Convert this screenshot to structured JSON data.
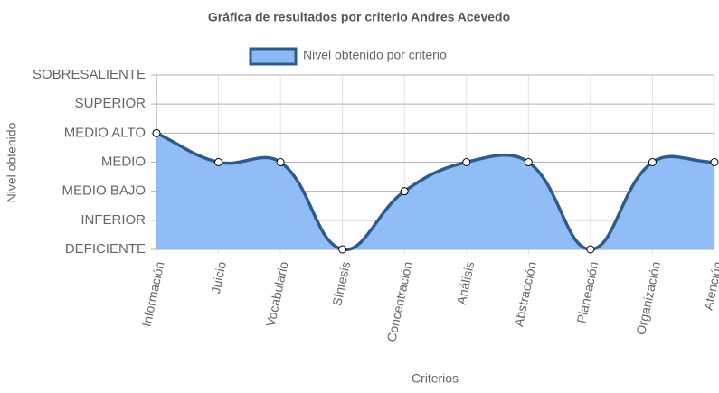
{
  "chart_data": {
    "type": "area",
    "title": "Gráfica de resultados por criterio Andres Acevedo",
    "x_label": "Criterios",
    "y_label": "Nivel obtenido",
    "categories": [
      "Información",
      "Juicio",
      "Vocabulario",
      "Síntesis",
      "Concentración",
      "Análisis",
      "Abstracción",
      "Planeación",
      "Organización",
      "Atención"
    ],
    "series": [
      {
        "name": "Nivel obtenido por criterio",
        "color": "#2f5b8c",
        "fill": "#8ab9f6",
        "values": [
          4,
          3,
          3,
          0,
          2,
          3,
          3,
          0,
          3,
          3
        ]
      }
    ],
    "ylim": [
      0,
      6
    ],
    "yticks": [
      {
        "value": 0,
        "label": "DEFICIENTE"
      },
      {
        "value": 1,
        "label": "INFERIOR"
      },
      {
        "value": 2,
        "label": "MEDIO BAJO"
      },
      {
        "value": 3,
        "label": "MEDIO"
      },
      {
        "value": 4,
        "label": "MEDIO ALTO"
      },
      {
        "value": 5,
        "label": "SUPERIOR"
      },
      {
        "value": 6,
        "label": "SOBRESALIENTE"
      }
    ],
    "grid": true,
    "legend": "top"
  }
}
